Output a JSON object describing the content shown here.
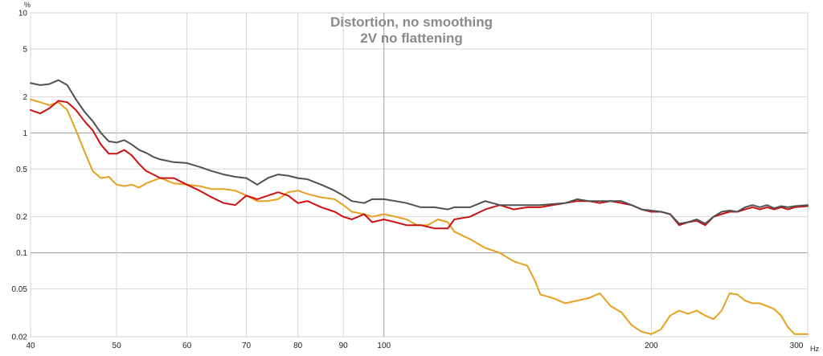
{
  "chart_data": {
    "type": "line",
    "title": "Distortion, no smoothing",
    "subtitle": "2V no flattening",
    "y_unit": "%",
    "x_unit": "Hz",
    "x_scale": "log",
    "y_scale": "log",
    "xlim": [
      40,
      300
    ],
    "ylim": [
      0.02,
      10
    ],
    "grid": true,
    "x_ticks": [
      40,
      50,
      60,
      70,
      80,
      90,
      100,
      200,
      300
    ],
    "x_tick_labels": [
      "40",
      "50",
      "60",
      "70",
      "80",
      "90",
      "100",
      "200",
      "300"
    ],
    "y_ticks": [
      10,
      5,
      2,
      1,
      0.5,
      0.2,
      0.1,
      0.05,
      0.02
    ],
    "y_tick_labels": [
      "10",
      "5",
      "2",
      "1",
      "0.5",
      "0.2",
      "0.1",
      "0.05",
      "0.02"
    ],
    "series": [
      {
        "color": "#e8a020",
        "points": [
          [
            40,
            1.9
          ],
          [
            41,
            1.8
          ],
          [
            42,
            1.7
          ],
          [
            43,
            1.8
          ],
          [
            44,
            1.55
          ],
          [
            45,
            1.05
          ],
          [
            46,
            0.7
          ],
          [
            47,
            0.48
          ],
          [
            48,
            0.42
          ],
          [
            49,
            0.43
          ],
          [
            50,
            0.37
          ],
          [
            51,
            0.36
          ],
          [
            52,
            0.37
          ],
          [
            53,
            0.35
          ],
          [
            54,
            0.38
          ],
          [
            55,
            0.4
          ],
          [
            56,
            0.42
          ],
          [
            58,
            0.38
          ],
          [
            60,
            0.37
          ],
          [
            62,
            0.36
          ],
          [
            64,
            0.34
          ],
          [
            66,
            0.34
          ],
          [
            68,
            0.33
          ],
          [
            70,
            0.3
          ],
          [
            72,
            0.27
          ],
          [
            74,
            0.27
          ],
          [
            76,
            0.28
          ],
          [
            78,
            0.32
          ],
          [
            80,
            0.33
          ],
          [
            82,
            0.31
          ],
          [
            85,
            0.29
          ],
          [
            88,
            0.28
          ],
          [
            90,
            0.25
          ],
          [
            92,
            0.22
          ],
          [
            95,
            0.21
          ],
          [
            97,
            0.2
          ],
          [
            100,
            0.21
          ],
          [
            103,
            0.2
          ],
          [
            106,
            0.19
          ],
          [
            109,
            0.17
          ],
          [
            112,
            0.17
          ],
          [
            115,
            0.19
          ],
          [
            118,
            0.18
          ],
          [
            120,
            0.15
          ],
          [
            125,
            0.13
          ],
          [
            130,
            0.11
          ],
          [
            135,
            0.1
          ],
          [
            140,
            0.085
          ],
          [
            145,
            0.078
          ],
          [
            148,
            0.058
          ],
          [
            150,
            0.045
          ],
          [
            155,
            0.042
          ],
          [
            160,
            0.038
          ],
          [
            165,
            0.04
          ],
          [
            170,
            0.042
          ],
          [
            175,
            0.046
          ],
          [
            180,
            0.036
          ],
          [
            185,
            0.032
          ],
          [
            190,
            0.025
          ],
          [
            195,
            0.022
          ],
          [
            200,
            0.021
          ],
          [
            205,
            0.023
          ],
          [
            210,
            0.03
          ],
          [
            215,
            0.033
          ],
          [
            220,
            0.031
          ],
          [
            225,
            0.033
          ],
          [
            230,
            0.03
          ],
          [
            235,
            0.028
          ],
          [
            240,
            0.033
          ],
          [
            245,
            0.046
          ],
          [
            250,
            0.045
          ],
          [
            255,
            0.04
          ],
          [
            260,
            0.038
          ],
          [
            265,
            0.038
          ],
          [
            270,
            0.036
          ],
          [
            275,
            0.034
          ],
          [
            280,
            0.03
          ],
          [
            285,
            0.024
          ],
          [
            290,
            0.021
          ],
          [
            300,
            0.021
          ]
        ]
      },
      {
        "color": "#cc1111",
        "points": [
          [
            40,
            1.55
          ],
          [
            41,
            1.45
          ],
          [
            42,
            1.6
          ],
          [
            43,
            1.85
          ],
          [
            44,
            1.8
          ],
          [
            45,
            1.55
          ],
          [
            46,
            1.25
          ],
          [
            47,
            1.05
          ],
          [
            48,
            0.8
          ],
          [
            49,
            0.67
          ],
          [
            50,
            0.67
          ],
          [
            51,
            0.72
          ],
          [
            52,
            0.65
          ],
          [
            53,
            0.55
          ],
          [
            54,
            0.48
          ],
          [
            55,
            0.45
          ],
          [
            56,
            0.42
          ],
          [
            58,
            0.42
          ],
          [
            60,
            0.37
          ],
          [
            62,
            0.33
          ],
          [
            64,
            0.29
          ],
          [
            66,
            0.26
          ],
          [
            68,
            0.25
          ],
          [
            70,
            0.3
          ],
          [
            72,
            0.28
          ],
          [
            74,
            0.3
          ],
          [
            76,
            0.32
          ],
          [
            78,
            0.3
          ],
          [
            80,
            0.26
          ],
          [
            82,
            0.27
          ],
          [
            85,
            0.24
          ],
          [
            88,
            0.22
          ],
          [
            90,
            0.2
          ],
          [
            92,
            0.19
          ],
          [
            95,
            0.21
          ],
          [
            97,
            0.18
          ],
          [
            100,
            0.19
          ],
          [
            103,
            0.18
          ],
          [
            106,
            0.17
          ],
          [
            110,
            0.17
          ],
          [
            114,
            0.16
          ],
          [
            118,
            0.16
          ],
          [
            120,
            0.19
          ],
          [
            125,
            0.2
          ],
          [
            130,
            0.23
          ],
          [
            135,
            0.25
          ],
          [
            140,
            0.23
          ],
          [
            145,
            0.24
          ],
          [
            150,
            0.24
          ],
          [
            155,
            0.25
          ],
          [
            160,
            0.26
          ],
          [
            165,
            0.27
          ],
          [
            170,
            0.27
          ],
          [
            175,
            0.26
          ],
          [
            180,
            0.27
          ],
          [
            185,
            0.26
          ],
          [
            190,
            0.25
          ],
          [
            195,
            0.23
          ],
          [
            200,
            0.22
          ],
          [
            205,
            0.22
          ],
          [
            210,
            0.21
          ],
          [
            215,
            0.17
          ],
          [
            220,
            0.18
          ],
          [
            225,
            0.185
          ],
          [
            230,
            0.17
          ],
          [
            235,
            0.2
          ],
          [
            240,
            0.21
          ],
          [
            245,
            0.22
          ],
          [
            250,
            0.22
          ],
          [
            255,
            0.23
          ],
          [
            260,
            0.24
          ],
          [
            265,
            0.23
          ],
          [
            270,
            0.24
          ],
          [
            275,
            0.23
          ],
          [
            280,
            0.24
          ],
          [
            285,
            0.23
          ],
          [
            290,
            0.24
          ],
          [
            300,
            0.245
          ]
        ]
      },
      {
        "color": "#505050",
        "points": [
          [
            40,
            2.6
          ],
          [
            41,
            2.5
          ],
          [
            42,
            2.55
          ],
          [
            43,
            2.75
          ],
          [
            44,
            2.5
          ],
          [
            45,
            1.9
          ],
          [
            46,
            1.5
          ],
          [
            47,
            1.25
          ],
          [
            48,
            1.0
          ],
          [
            49,
            0.85
          ],
          [
            50,
            0.83
          ],
          [
            51,
            0.87
          ],
          [
            52,
            0.8
          ],
          [
            53,
            0.72
          ],
          [
            54,
            0.68
          ],
          [
            55,
            0.63
          ],
          [
            56,
            0.6
          ],
          [
            58,
            0.57
          ],
          [
            60,
            0.56
          ],
          [
            62,
            0.52
          ],
          [
            64,
            0.48
          ],
          [
            66,
            0.45
          ],
          [
            68,
            0.43
          ],
          [
            70,
            0.42
          ],
          [
            72,
            0.37
          ],
          [
            74,
            0.42
          ],
          [
            76,
            0.45
          ],
          [
            78,
            0.44
          ],
          [
            80,
            0.42
          ],
          [
            82,
            0.41
          ],
          [
            85,
            0.37
          ],
          [
            88,
            0.33
          ],
          [
            90,
            0.3
          ],
          [
            92,
            0.27
          ],
          [
            95,
            0.26
          ],
          [
            97,
            0.28
          ],
          [
            100,
            0.28
          ],
          [
            103,
            0.27
          ],
          [
            106,
            0.26
          ],
          [
            110,
            0.24
          ],
          [
            114,
            0.24
          ],
          [
            118,
            0.23
          ],
          [
            120,
            0.24
          ],
          [
            125,
            0.24
          ],
          [
            130,
            0.27
          ],
          [
            135,
            0.25
          ],
          [
            140,
            0.25
          ],
          [
            145,
            0.25
          ],
          [
            150,
            0.25
          ],
          [
            155,
            0.255
          ],
          [
            160,
            0.26
          ],
          [
            165,
            0.28
          ],
          [
            170,
            0.27
          ],
          [
            175,
            0.27
          ],
          [
            180,
            0.27
          ],
          [
            185,
            0.27
          ],
          [
            190,
            0.25
          ],
          [
            195,
            0.23
          ],
          [
            200,
            0.225
          ],
          [
            205,
            0.22
          ],
          [
            210,
            0.21
          ],
          [
            215,
            0.175
          ],
          [
            220,
            0.18
          ],
          [
            225,
            0.19
          ],
          [
            230,
            0.175
          ],
          [
            235,
            0.2
          ],
          [
            240,
            0.22
          ],
          [
            245,
            0.225
          ],
          [
            250,
            0.22
          ],
          [
            255,
            0.24
          ],
          [
            260,
            0.25
          ],
          [
            265,
            0.24
          ],
          [
            270,
            0.25
          ],
          [
            275,
            0.235
          ],
          [
            280,
            0.245
          ],
          [
            285,
            0.24
          ],
          [
            290,
            0.245
          ],
          [
            300,
            0.25
          ]
        ]
      }
    ]
  }
}
